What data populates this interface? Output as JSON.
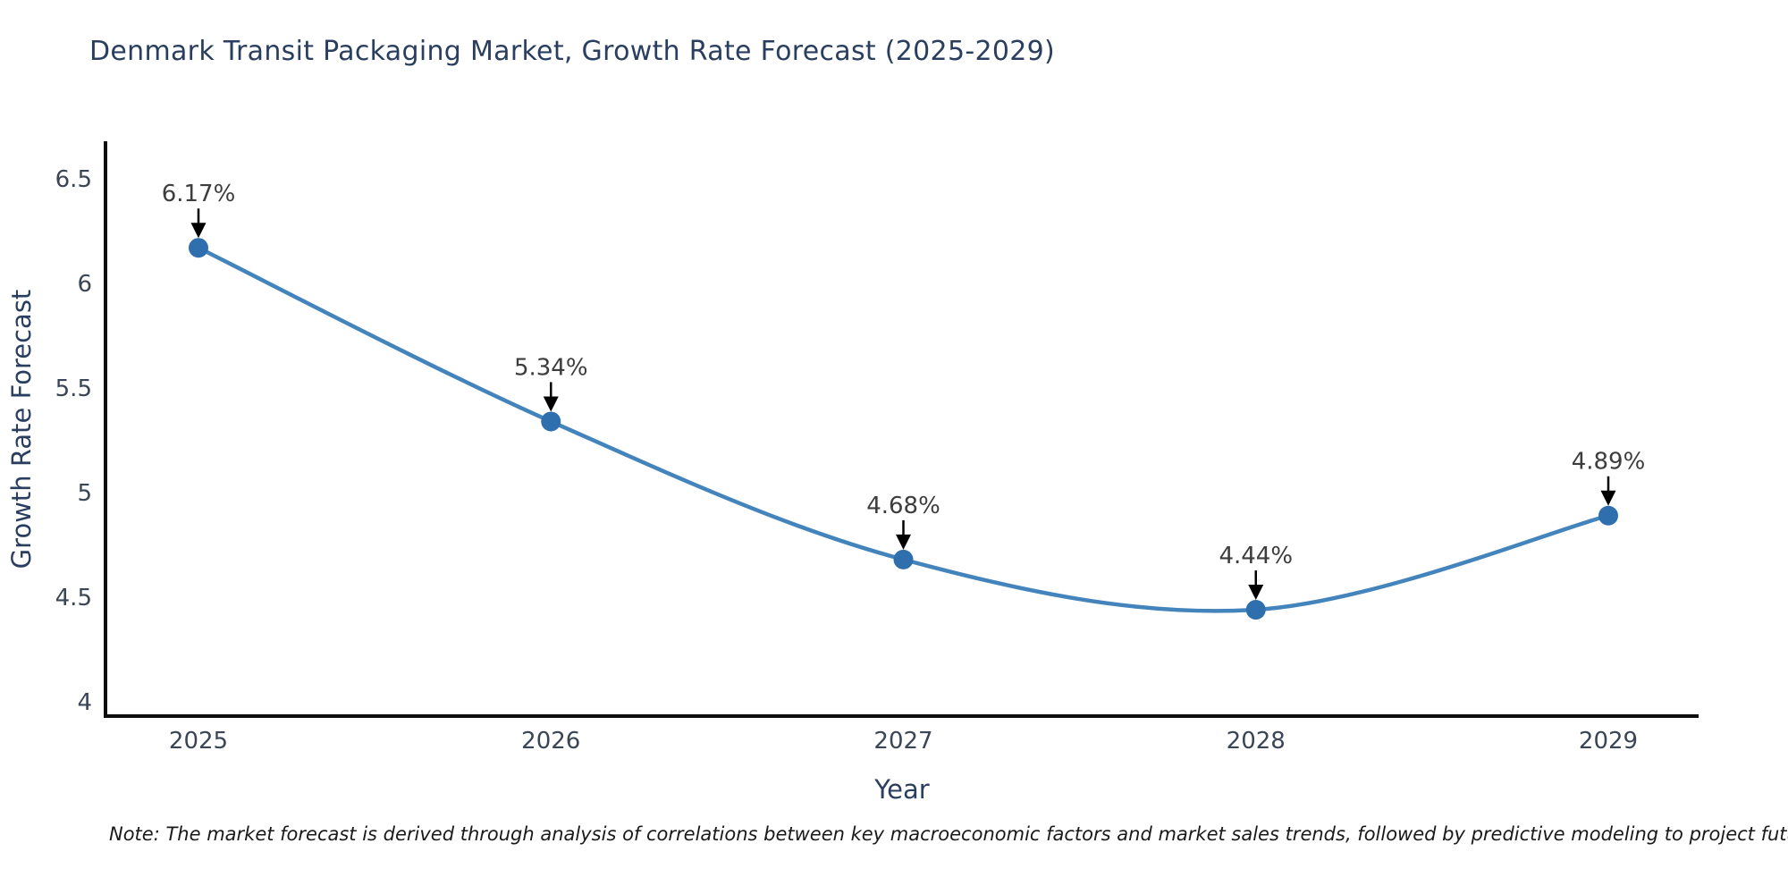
{
  "chart_data": {
    "type": "line",
    "title": "Denmark Transit Packaging Market, Growth Rate Forecast (2025-2029)",
    "xlabel": "Year",
    "ylabel": "Growth Rate Forecast",
    "x": [
      2025,
      2026,
      2027,
      2028,
      2029
    ],
    "y": [
      6.17,
      5.34,
      4.68,
      4.44,
      4.89
    ],
    "point_labels": [
      "6.17%",
      "5.34%",
      "4.68%",
      "4.44%",
      "4.89%"
    ],
    "yticks": [
      4,
      4.5,
      5,
      5.5,
      6,
      6.5
    ],
    "xticks": [
      2025,
      2026,
      2027,
      2028,
      2029
    ],
    "ylim": [
      3.93,
      6.67
    ],
    "grid": false,
    "legend": "none",
    "line_color": "#4484bc",
    "marker_color": "#2f6fae",
    "annotation_color": "#000000",
    "axis_color": "#0d0d0d"
  },
  "note": {
    "text": "Note: The market forecast is derived through analysis of correlations between key macroeconomic factors and market sales trends, followed by predictive modeling to project future sales"
  }
}
